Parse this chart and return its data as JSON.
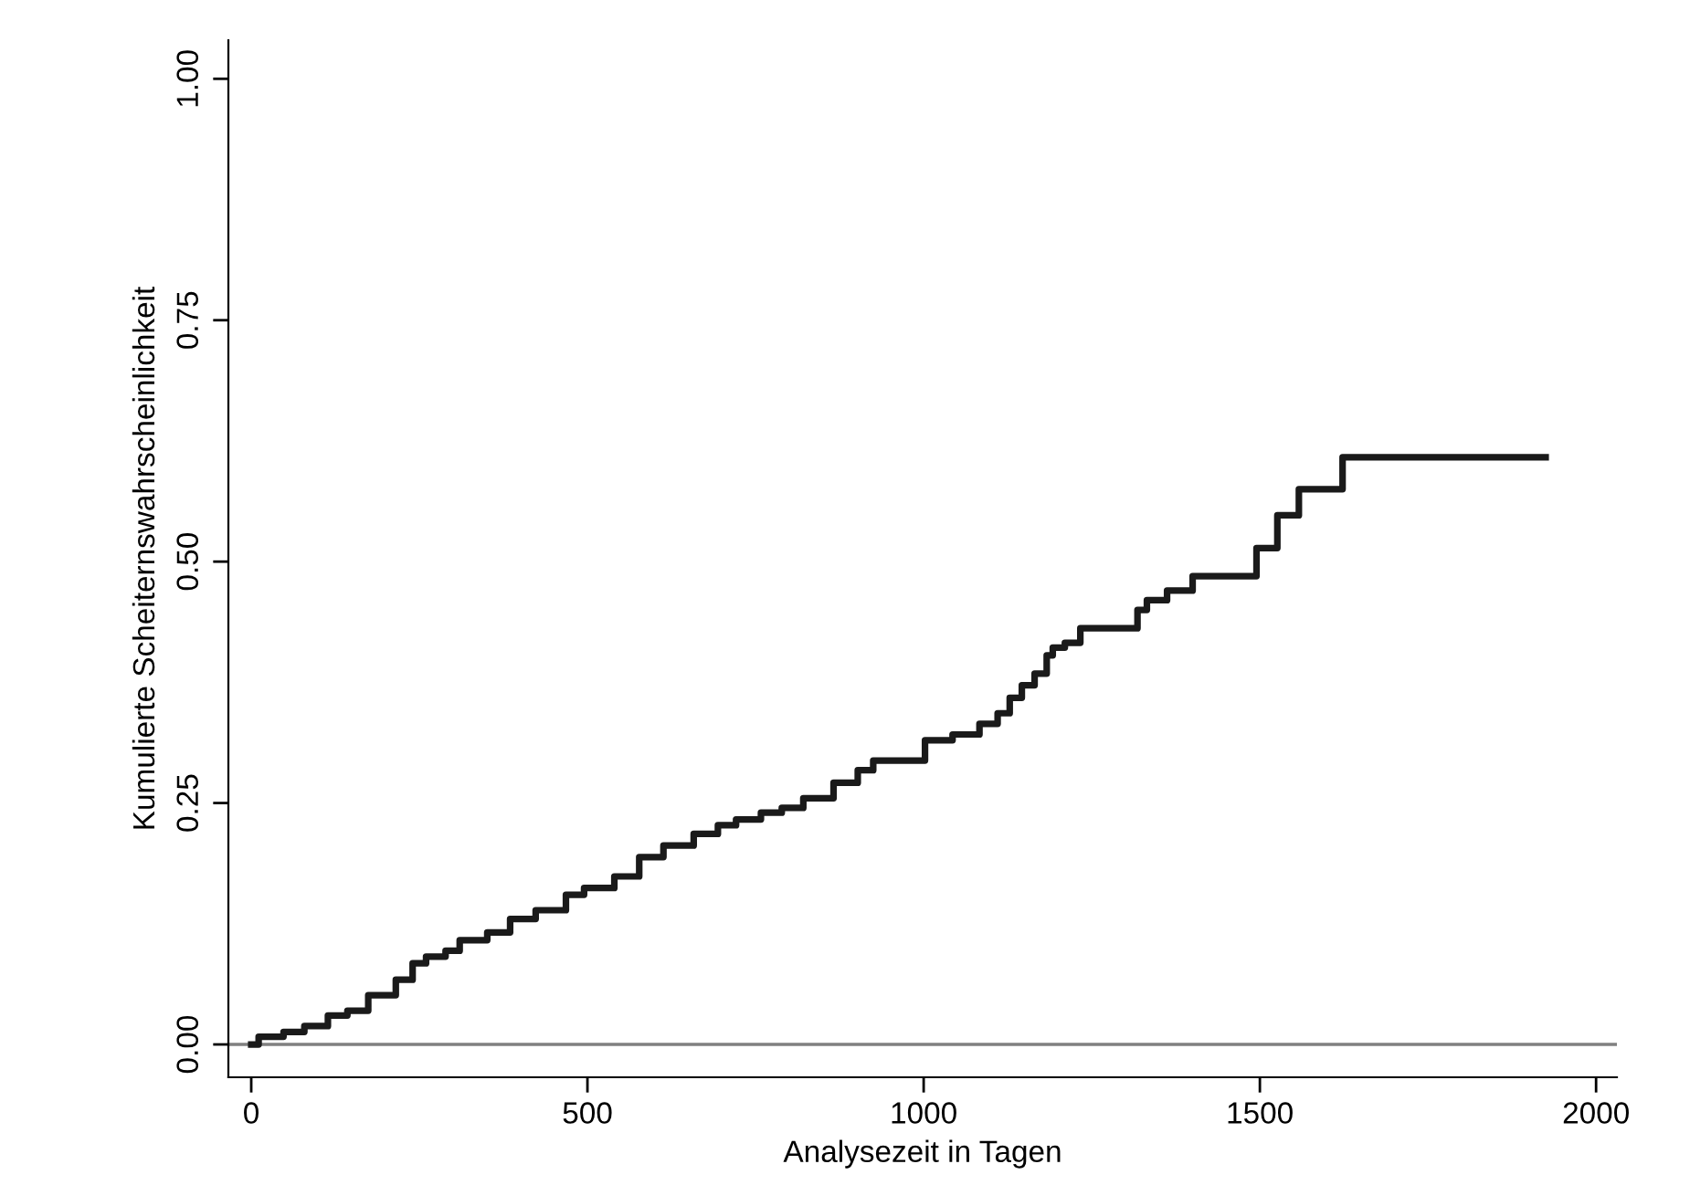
{
  "chart_data": {
    "type": "step",
    "xlabel": "Analysezeit in Tagen",
    "ylabel": "Kumulierte Scheiternswahrscheinlichkeit",
    "x": [
      0,
      11,
      48,
      79,
      114,
      143,
      174,
      215,
      240,
      260,
      289,
      310,
      351,
      385,
      423,
      468,
      495,
      540,
      577,
      613,
      658,
      694,
      721,
      758,
      789,
      821,
      866,
      902,
      925,
      1002,
      1043,
      1083,
      1110,
      1128,
      1146,
      1165,
      1183,
      1192,
      1210,
      1233,
      1318,
      1332,
      1362,
      1400,
      1495,
      1526,
      1558,
      1623,
      1925
    ],
    "series": [
      {
        "color": "#1a1a1a",
        "values": [
          0,
          0.008,
          0.013,
          0.019,
          0.03,
          0.035,
          0.051,
          0.067,
          0.084,
          0.091,
          0.097,
          0.108,
          0.116,
          0.13,
          0.139,
          0.155,
          0.162,
          0.174,
          0.194,
          0.206,
          0.218,
          0.227,
          0.233,
          0.24,
          0.245,
          0.255,
          0.271,
          0.284,
          0.294,
          0.315,
          0.321,
          0.332,
          0.343,
          0.359,
          0.372,
          0.384,
          0.403,
          0.411,
          0.416,
          0.431,
          0.45,
          0.46,
          0.47,
          0.485,
          0.514,
          0.548,
          0.575,
          0.608,
          0.608
        ]
      }
    ],
    "xlim": [
      -34,
      2031
    ],
    "xticks": [
      0,
      500,
      1000,
      1500,
      2000
    ],
    "ylim": [
      -0.034,
      1.04
    ],
    "yticks": [
      {
        "value": 0,
        "label": "0.00"
      },
      {
        "value": 0.25,
        "label": "0.25"
      },
      {
        "value": 0.5,
        "label": "0.50"
      },
      {
        "value": 0.75,
        "label": "0.75"
      },
      {
        "value": 1,
        "label": "1.00"
      }
    ],
    "ref_lines": [
      {
        "axis": "y",
        "value": 0,
        "color": "#808080"
      }
    ],
    "grid": false,
    "legend": false,
    "line_style": "solid"
  }
}
